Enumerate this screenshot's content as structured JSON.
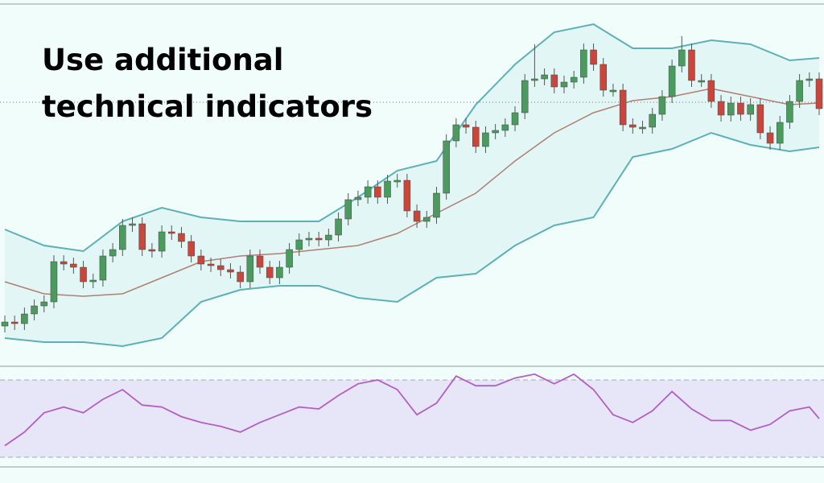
{
  "chart_data": [
    {
      "type": "candlestick",
      "title": [
        "Use additional",
        "technical indicators"
      ],
      "xlim": [
        -0.5,
        83.5
      ],
      "ylim": [
        0,
        450
      ],
      "up_color": "#4b9a5e",
      "down_color": "#c8463b",
      "open": [
        50,
        55,
        53,
        65,
        75,
        80,
        130,
        127,
        123,
        105,
        107,
        137,
        145,
        175,
        177,
        145,
        143,
        167,
        165,
        155,
        137,
        127,
        125,
        120,
        117,
        105,
        137,
        123,
        110,
        123,
        145,
        157,
        159,
        157,
        163,
        183,
        207,
        210,
        223,
        210,
        230,
        231,
        193,
        180,
        185,
        215,
        280,
        300,
        297,
        273,
        290,
        293,
        300,
        315,
        355,
        357,
        362,
        347,
        353,
        359,
        393,
        375,
        343,
        343,
        300,
        297,
        297,
        313,
        335,
        373,
        393,
        355,
        355,
        329,
        312,
        327,
        313,
        325,
        290,
        277,
        303,
        329,
        355,
        357
      ],
      "close": [
        55,
        53,
        65,
        75,
        80,
        130,
        127,
        123,
        105,
        107,
        137,
        145,
        175,
        177,
        145,
        143,
        167,
        165,
        155,
        137,
        127,
        125,
        120,
        117,
        105,
        137,
        123,
        110,
        123,
        145,
        157,
        159,
        157,
        163,
        183,
        207,
        210,
        223,
        210,
        230,
        231,
        193,
        180,
        185,
        215,
        280,
        300,
        297,
        273,
        290,
        293,
        300,
        315,
        355,
        357,
        362,
        347,
        353,
        359,
        393,
        375,
        343,
        343,
        300,
        297,
        297,
        313,
        335,
        373,
        393,
        355,
        355,
        329,
        312,
        327,
        313,
        325,
        290,
        277,
        303,
        329,
        355,
        357,
        320
      ],
      "high": [
        63,
        63,
        73,
        83,
        88,
        138,
        138,
        135,
        131,
        115,
        145,
        153,
        183,
        185,
        185,
        153,
        175,
        175,
        173,
        163,
        145,
        135,
        133,
        128,
        125,
        145,
        145,
        131,
        131,
        153,
        165,
        167,
        167,
        171,
        191,
        215,
        218,
        231,
        231,
        238,
        239,
        239,
        201,
        193,
        223,
        288,
        308,
        308,
        305,
        298,
        301,
        308,
        323,
        363,
        400,
        370,
        370,
        361,
        367,
        401,
        401,
        383,
        351,
        351,
        308,
        305,
        321,
        343,
        381,
        410,
        401,
        363,
        363,
        337,
        335,
        335,
        333,
        333,
        298,
        311,
        337,
        363,
        365,
        365
      ],
      "low": [
        42,
        45,
        45,
        57,
        67,
        72,
        119,
        115,
        97,
        97,
        99,
        129,
        137,
        167,
        137,
        135,
        135,
        157,
        147,
        129,
        119,
        117,
        112,
        109,
        97,
        97,
        115,
        102,
        102,
        115,
        137,
        149,
        149,
        149,
        155,
        175,
        199,
        202,
        202,
        202,
        222,
        185,
        172,
        172,
        177,
        207,
        272,
        289,
        265,
        265,
        282,
        285,
        292,
        307,
        347,
        349,
        339,
        339,
        345,
        351,
        367,
        335,
        335,
        292,
        289,
        289,
        289,
        305,
        327,
        365,
        347,
        347,
        321,
        304,
        304,
        305,
        305,
        282,
        269,
        269,
        295,
        321,
        347,
        312
      ],
      "bands": {
        "x": [
          0,
          4,
          8,
          12,
          16,
          20,
          24,
          28,
          32,
          36,
          40,
          44,
          48,
          52,
          56,
          60,
          64,
          68,
          72,
          76,
          80,
          83
        ],
        "upper": [
          170,
          150,
          143,
          180,
          197,
          185,
          180,
          180,
          180,
          210,
          243,
          255,
          325,
          375,
          415,
          425,
          395,
          395,
          405,
          400,
          380,
          383
        ],
        "middle": [
          105,
          90,
          87,
          90,
          110,
          130,
          137,
          140,
          145,
          150,
          165,
          190,
          215,
          255,
          290,
          315,
          330,
          335,
          345,
          335,
          325,
          327
        ],
        "lower": [
          35,
          30,
          30,
          25,
          35,
          80,
          95,
          100,
          100,
          85,
          80,
          110,
          115,
          150,
          175,
          185,
          260,
          270,
          290,
          275,
          267,
          272
        ],
        "band_color": "#5cb0b6",
        "middle_color": "#b07f72",
        "fill": "#e2f7f5"
      }
    },
    {
      "type": "line",
      "xlim": [
        -0.5,
        83.5
      ],
      "ylim": [
        25,
        75
      ],
      "levels": [
        30,
        70
      ],
      "color": "#b35ec4",
      "fill": "#e7e5f8",
      "x": [
        0,
        2,
        4,
        6,
        8,
        10,
        12,
        14,
        16,
        18,
        20,
        22,
        24,
        26,
        28,
        30,
        32,
        34,
        36,
        38,
        40,
        42,
        44,
        46,
        48,
        50,
        52,
        54,
        56,
        58,
        60,
        62,
        64,
        66,
        68,
        70,
        72,
        74,
        76,
        78,
        80,
        82,
        83
      ],
      "values": [
        36,
        43,
        53,
        56,
        53,
        60,
        65,
        57,
        56,
        51,
        48,
        46,
        43,
        48,
        52,
        56,
        55,
        62,
        68,
        70,
        65,
        52,
        58,
        72,
        67,
        67,
        71,
        73,
        68,
        73,
        65,
        52,
        48,
        54,
        64,
        55,
        49,
        49,
        44,
        47,
        54,
        56,
        50
      ]
    }
  ]
}
